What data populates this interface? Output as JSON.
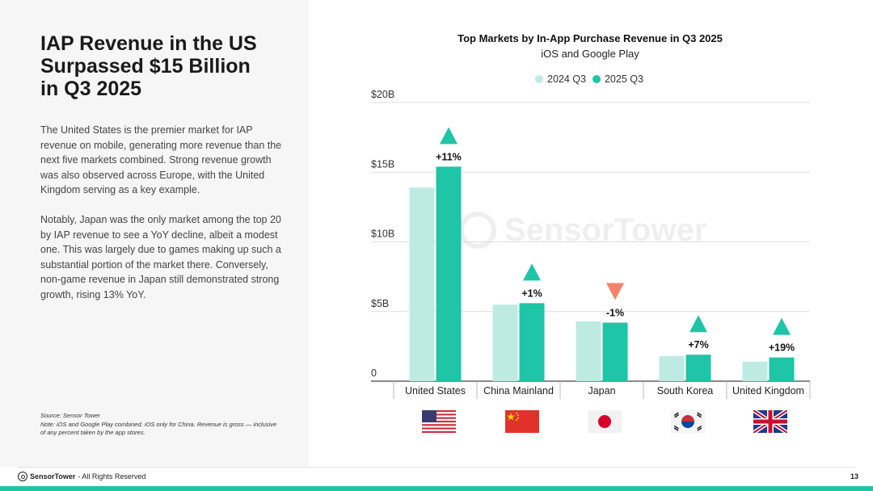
{
  "left": {
    "headline": [
      "IAP Revenue in the US",
      "Surpassed $15 Billion",
      "in Q3 2025"
    ],
    "paragraph1": "The United States is the premier market for IAP revenue on mobile, generating more revenue than the next five markets combined. Strong revenue growth was also observed across Europe, with the United Kingdom serving as a key example.",
    "paragraph2": "Notably, Japan was the only market among the top 20 by IAP revenue to see a YoY decline, albeit a modest one. This was largely due to games making up such a substantial portion of the market there. Conversely, non-game revenue in Japan still demonstrated strong growth, rising 13% YoY.",
    "source": "Source: Sensor Tower",
    "note": "Note: iOS and Google Play combined. iOS only for China. Revenue is gross — inclusive of any percent taken by the app stores."
  },
  "footer": {
    "brand": "SensorTower",
    "rights": "- All Rights Reserved",
    "page_number": "13"
  },
  "watermark": "SensorTower",
  "colors": {
    "accent": "#1fc3a6",
    "series_2024": "#bdebe2",
    "series_2025": "#1ec5a6",
    "up": "#1ec5a6",
    "down": "#f4836b"
  },
  "chart_data": {
    "type": "bar",
    "title": "Top Markets by In-App Purchase Revenue in Q3 2025",
    "subtitle": "iOS and Google Play",
    "categories": [
      "United States",
      "China Mainland",
      "Japan",
      "South Korea",
      "United Kingdom"
    ],
    "series": [
      {
        "name": "2024 Q3",
        "values": [
          13.9,
          5.5,
          4.3,
          1.8,
          1.4
        ]
      },
      {
        "name": "2025 Q3",
        "values": [
          15.4,
          5.6,
          4.2,
          1.9,
          1.7
        ]
      }
    ],
    "changes": [
      "+11%",
      "+1%",
      "-1%",
      "+7%",
      "+19%"
    ],
    "directions": [
      "up",
      "up",
      "down",
      "up",
      "up"
    ],
    "y_ticks": [
      {
        "value": 0,
        "label": "0"
      },
      {
        "value": 5,
        "label": "$5B"
      },
      {
        "value": 10,
        "label": "$10B"
      },
      {
        "value": 15,
        "label": "$15B"
      },
      {
        "value": 20,
        "label": "$20B"
      }
    ],
    "ylim": [
      0,
      20
    ],
    "ylabel": "",
    "xlabel": "",
    "legend_position": "top-right",
    "flags": [
      "us-flag",
      "china-flag",
      "japan-flag",
      "south-korea-flag",
      "uk-flag"
    ]
  }
}
